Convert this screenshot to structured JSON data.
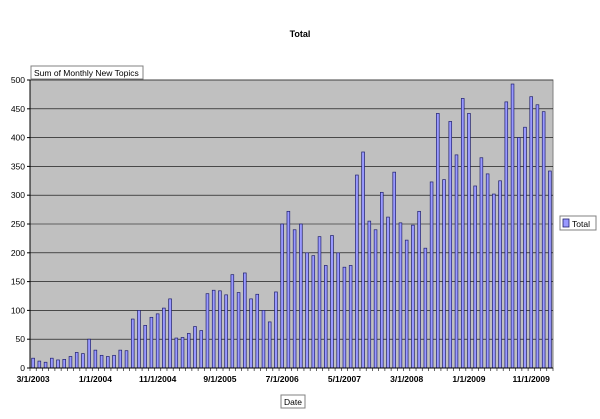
{
  "chart_data": {
    "type": "bar",
    "title": "Total",
    "ylabel": "",
    "xlabel": "Date",
    "data_field_label": "Sum of Monthly New Topics",
    "legend": {
      "entries": [
        "Total"
      ],
      "placement": "right"
    },
    "ylim": [
      0,
      500
    ],
    "y_ticks": [
      0,
      50,
      100,
      150,
      200,
      250,
      300,
      350,
      400,
      450,
      500
    ],
    "grid": true,
    "colors": {
      "bar_fill": "#9999ff",
      "bar_stroke": "#1f1f6e",
      "plot_bg": "#c0c0c0",
      "gridline": "#000000"
    },
    "x_tick_labels": [
      "3/1/2003",
      "1/1/2004",
      "11/1/2004",
      "9/1/2005",
      "7/1/2006",
      "5/1/2007",
      "3/1/2008",
      "1/1/2009",
      "11/1/2009"
    ],
    "x_tick_indices": [
      0,
      10,
      20,
      30,
      40,
      50,
      60,
      70,
      80
    ],
    "series": [
      {
        "name": "Total",
        "values": [
          17,
          12,
          10,
          17,
          14,
          15,
          20,
          27,
          25,
          50,
          31,
          22,
          20,
          22,
          31,
          30,
          85,
          100,
          74,
          88,
          94,
          104,
          120,
          52,
          53,
          60,
          72,
          65,
          129,
          135,
          134,
          127,
          162,
          131,
          165,
          120,
          128,
          100,
          80,
          132,
          250,
          272,
          240,
          250,
          200,
          195,
          228,
          178,
          230,
          200,
          175,
          178,
          335,
          375,
          255,
          240,
          305,
          262,
          340,
          252,
          222,
          248,
          272,
          208,
          323,
          442,
          327,
          428,
          370,
          468,
          442,
          316,
          365,
          337,
          302,
          325,
          462,
          493,
          400,
          418,
          471,
          457,
          445,
          342
        ]
      }
    ]
  }
}
